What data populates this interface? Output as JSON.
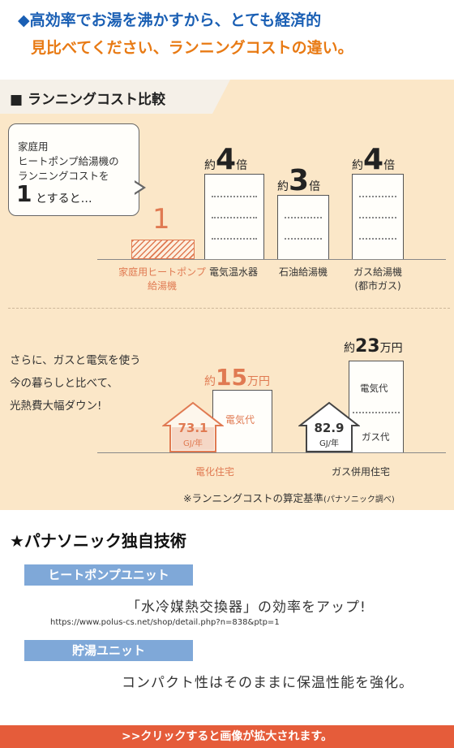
{
  "header": {
    "line1": "◆高効率でお湯を沸かすから、とても経済的",
    "line2": "見比べてください、ランニングコストの違い。"
  },
  "section": {
    "title": "■ ランニングコスト比較",
    "bubble": {
      "line1": "家庭用",
      "line2": "ヒートポンプ給湯機の",
      "line3": "ランニングコストを",
      "big": "1",
      "suffix": "とすると…"
    },
    "comparison": {
      "items": [
        {
          "label1": "家庭用ヒートポンプ",
          "label2": "給湯機",
          "value": "1",
          "prefix": "",
          "suffix": ""
        },
        {
          "label1": "電気温水器",
          "label2": "",
          "value": "4",
          "prefix": "約",
          "suffix": "倍"
        },
        {
          "label1": "石油給湯機",
          "label2": "",
          "value": "3",
          "prefix": "約",
          "suffix": "倍"
        },
        {
          "label1": "ガス給湯機",
          "label2": "(都市ガス)",
          "value": "4",
          "prefix": "約",
          "suffix": "倍"
        }
      ]
    },
    "side_text": {
      "line1": "さらに、ガスと電気を使う",
      "line2": "今の暮らしと比べて、",
      "line3": "光熱費大幅ダウン!"
    },
    "houses": [
      {
        "energy": "73.1",
        "unit": "GJ/年",
        "cost_prefix": "約",
        "cost": "15",
        "cost_suffix": "万円",
        "bar_label": "電気代",
        "name": "電化住宅"
      },
      {
        "energy": "82.9",
        "unit": "GJ/年",
        "cost_prefix": "約",
        "cost": "23",
        "cost_suffix": "万円",
        "bar_label_top": "電気代",
        "bar_label_bottom": "ガス代",
        "name": "ガス併用住宅"
      }
    ],
    "note": "※ランニングコストの算定基準",
    "note_small": "(パナソニック調べ)"
  },
  "tech": {
    "title": "★パナソニック独自技術",
    "items": [
      {
        "label": "ヒートポンプユニット",
        "text": "「水冷媒熱交換器」の効率をアップ!"
      },
      {
        "label": "貯湯ユニット",
        "text": "コンパクト性はそのままに保温性能を強化。"
      }
    ],
    "url": "https://www.polus-cs.net/shop/detail.php?n=838&ptp=1"
  },
  "footer": {
    "text": ">>クリックすると画像が拡大されます。"
  },
  "colors": {
    "accent_orange": "#e07a52",
    "header_blue": "#1a5fb4",
    "panel_bg": "#fbe7c8",
    "pill_blue": "#7fa8d8",
    "footer_red": "#e55c3a"
  }
}
